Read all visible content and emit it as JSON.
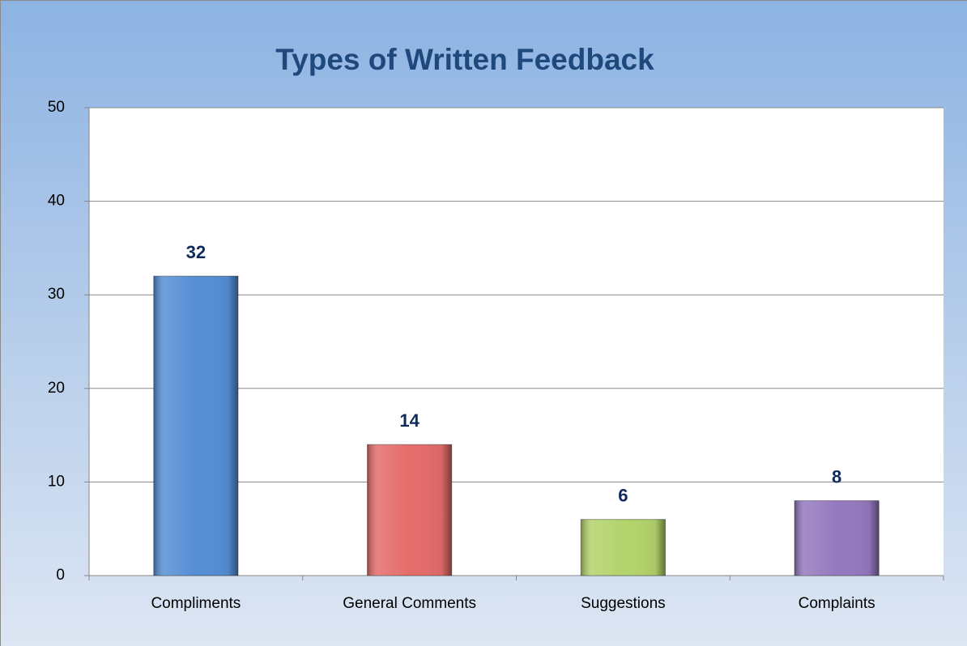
{
  "chart_data": {
    "type": "bar",
    "title": "Types of Written Feedback",
    "categories": [
      "Compliments",
      "General Comments",
      "Suggestions",
      "Complaints"
    ],
    "values": [
      32,
      14,
      6,
      8
    ],
    "colors": [
      "#558ed5",
      "#e46c6a",
      "#b3d36b",
      "#9579bf"
    ],
    "ylim": [
      0,
      50
    ],
    "yticks": [
      0,
      10,
      20,
      30,
      40,
      50
    ],
    "grid": true
  }
}
